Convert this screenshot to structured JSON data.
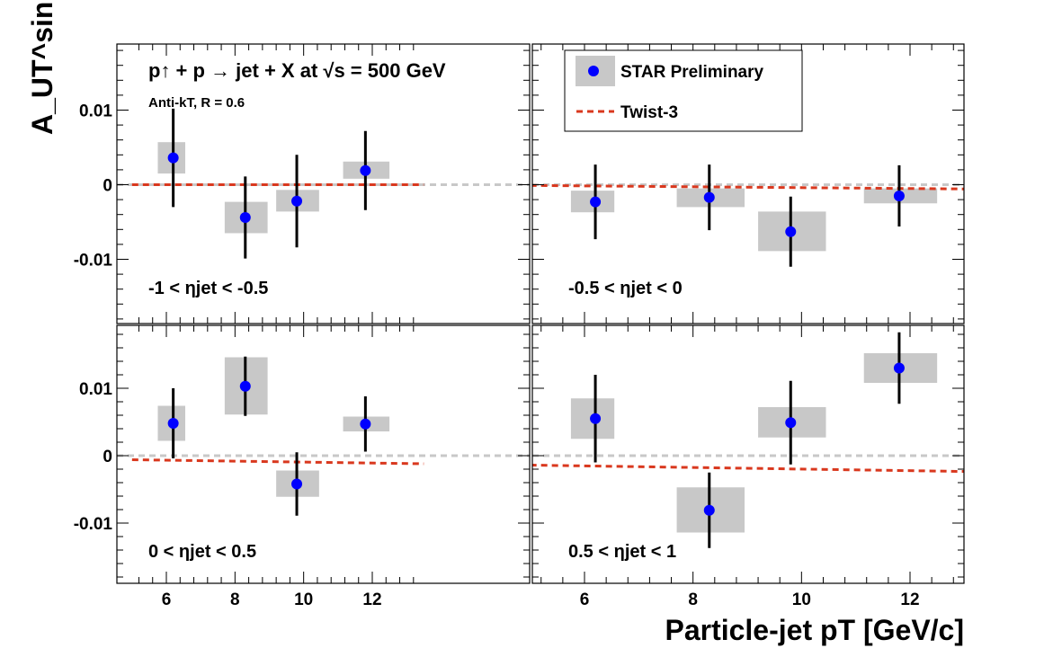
{
  "chart_data": {
    "type": "scatter",
    "title": "p↑ + p → jet + X at √s = 500 GeV",
    "subtitle": "Anti-kT, R = 0.6",
    "xlabel": "Particle-jet pT [GeV/c]",
    "ylabel": "A_UT^sin(φS)",
    "xlim": [
      5,
      13.5
    ],
    "ylim": [
      -0.019,
      0.0205
    ],
    "x_ticks": [
      "6",
      "8",
      "10",
      "12"
    ],
    "y_ticks": [
      "0.01",
      "0",
      "-0.01"
    ],
    "grid": false,
    "legend_position": "top-right",
    "legend": [
      "STAR Preliminary",
      "Twist-3"
    ],
    "series_colors": {
      "data": "#0000ff",
      "systematic": "#c8c8c8",
      "theory": "#d9381e",
      "zero_line": "#c8c8c8"
    },
    "panels": [
      {
        "eta_label": "-1 < ηjet < -0.5",
        "points": [
          {
            "x": 6.2,
            "y": 0.0036,
            "stat": 0.0066,
            "sys_x": [
              5.75,
              6.55
            ],
            "sys_y": [
              0.0015,
              0.0057
            ]
          },
          {
            "x": 8.3,
            "y": -0.0044,
            "stat": 0.0055,
            "sys_x": [
              7.7,
              8.95
            ],
            "sys_y": [
              -0.0065,
              -0.0023
            ]
          },
          {
            "x": 9.8,
            "y": -0.0022,
            "stat": 0.0062,
            "sys_x": [
              9.2,
              10.45
            ],
            "sys_y": [
              -0.0036,
              -0.0007
            ]
          },
          {
            "x": 11.8,
            "y": 0.0019,
            "stat": 0.0053,
            "sys_x": [
              11.15,
              12.5
            ],
            "sys_y": [
              0.0008,
              0.0031
            ]
          }
        ],
        "twist3": [
          [
            5,
            0.0
          ],
          [
            13.5,
            0.0
          ]
        ]
      },
      {
        "eta_label": "-0.5 < ηjet < 0",
        "points": [
          {
            "x": 6.2,
            "y": -0.0023,
            "stat": 0.005,
            "sys_x": [
              5.75,
              6.55
            ],
            "sys_y": [
              -0.0037,
              -0.0008
            ]
          },
          {
            "x": 8.3,
            "y": -0.0017,
            "stat": 0.0044,
            "sys_x": [
              7.7,
              8.95
            ],
            "sys_y": [
              -0.003,
              -0.0005
            ]
          },
          {
            "x": 9.8,
            "y": -0.0063,
            "stat": 0.0047,
            "sys_x": [
              9.2,
              10.45
            ],
            "sys_y": [
              -0.0089,
              -0.0036
            ]
          },
          {
            "x": 11.8,
            "y": -0.0015,
            "stat": 0.0041,
            "sys_x": [
              11.15,
              12.5
            ],
            "sys_y": [
              -0.0025,
              -0.0005
            ]
          }
        ],
        "twist3": [
          [
            5,
            -0.0001
          ],
          [
            13.5,
            -0.0006
          ]
        ]
      },
      {
        "eta_label": "0 < ηjet < 0.5",
        "points": [
          {
            "x": 6.2,
            "y": 0.0048,
            "stat": 0.0052,
            "sys_x": [
              5.75,
              6.55
            ],
            "sys_y": [
              0.0022,
              0.0074
            ]
          },
          {
            "x": 8.3,
            "y": 0.0103,
            "stat": 0.0044,
            "sys_x": [
              7.7,
              8.95
            ],
            "sys_y": [
              0.0061,
              0.0146
            ]
          },
          {
            "x": 9.8,
            "y": -0.0042,
            "stat": 0.0047,
            "sys_x": [
              9.2,
              10.45
            ],
            "sys_y": [
              -0.0061,
              -0.0022
            ]
          },
          {
            "x": 11.8,
            "y": 0.0047,
            "stat": 0.0041,
            "sys_x": [
              11.15,
              12.5
            ],
            "sys_y": [
              0.0036,
              0.0058
            ]
          }
        ],
        "twist3": [
          [
            5,
            -0.0006
          ],
          [
            13.5,
            -0.0012
          ]
        ]
      },
      {
        "eta_label": "0.5 < ηjet < 1",
        "points": [
          {
            "x": 6.2,
            "y": 0.0055,
            "stat": 0.0065,
            "sys_x": [
              5.75,
              6.55
            ],
            "sys_y": [
              0.0025,
              0.0085
            ]
          },
          {
            "x": 8.3,
            "y": -0.0081,
            "stat": 0.0056,
            "sys_x": [
              7.7,
              8.95
            ],
            "sys_y": [
              -0.0114,
              -0.0047
            ]
          },
          {
            "x": 9.8,
            "y": 0.0049,
            "stat": 0.0062,
            "sys_x": [
              9.2,
              10.45
            ],
            "sys_y": [
              0.0027,
              0.0072
            ]
          },
          {
            "x": 11.8,
            "y": 0.013,
            "stat": 0.0053,
            "sys_x": [
              11.15,
              12.5
            ],
            "sys_y": [
              0.0108,
              0.0152
            ]
          }
        ],
        "twist3": [
          [
            5,
            -0.0014
          ],
          [
            13.5,
            -0.0024
          ]
        ]
      }
    ]
  }
}
